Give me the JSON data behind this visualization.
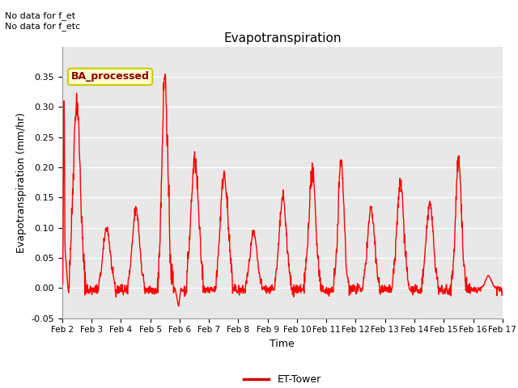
{
  "title": "Evapotranspiration",
  "xlabel": "Time",
  "ylabel": "Evapotranspiration (mm/hr)",
  "ylim": [
    -0.05,
    0.4
  ],
  "yticks": [
    -0.05,
    0.0,
    0.05,
    0.1,
    0.15,
    0.2,
    0.25,
    0.3,
    0.35
  ],
  "xtick_labels": [
    "Feb 2",
    "Feb 3",
    "Feb 4",
    "Feb 5",
    "Feb 6",
    "Feb 7",
    "Feb 8",
    "Feb 9",
    "Feb 10",
    "Feb 11",
    "Feb 12",
    "Feb 13",
    "Feb 14",
    "Feb 15",
    "Feb 16",
    "Feb 17"
  ],
  "line_color": "#ff0000",
  "line_width": 1.0,
  "bg_color": "#e8e8e8",
  "annotation_text": "No data for f_et\nNo data for f_etc",
  "box_label": "BA_processed",
  "legend_label": "ET-Tower",
  "legend_line_color": "#cc0000",
  "figsize": [
    6.4,
    4.8
  ],
  "dpi": 100
}
